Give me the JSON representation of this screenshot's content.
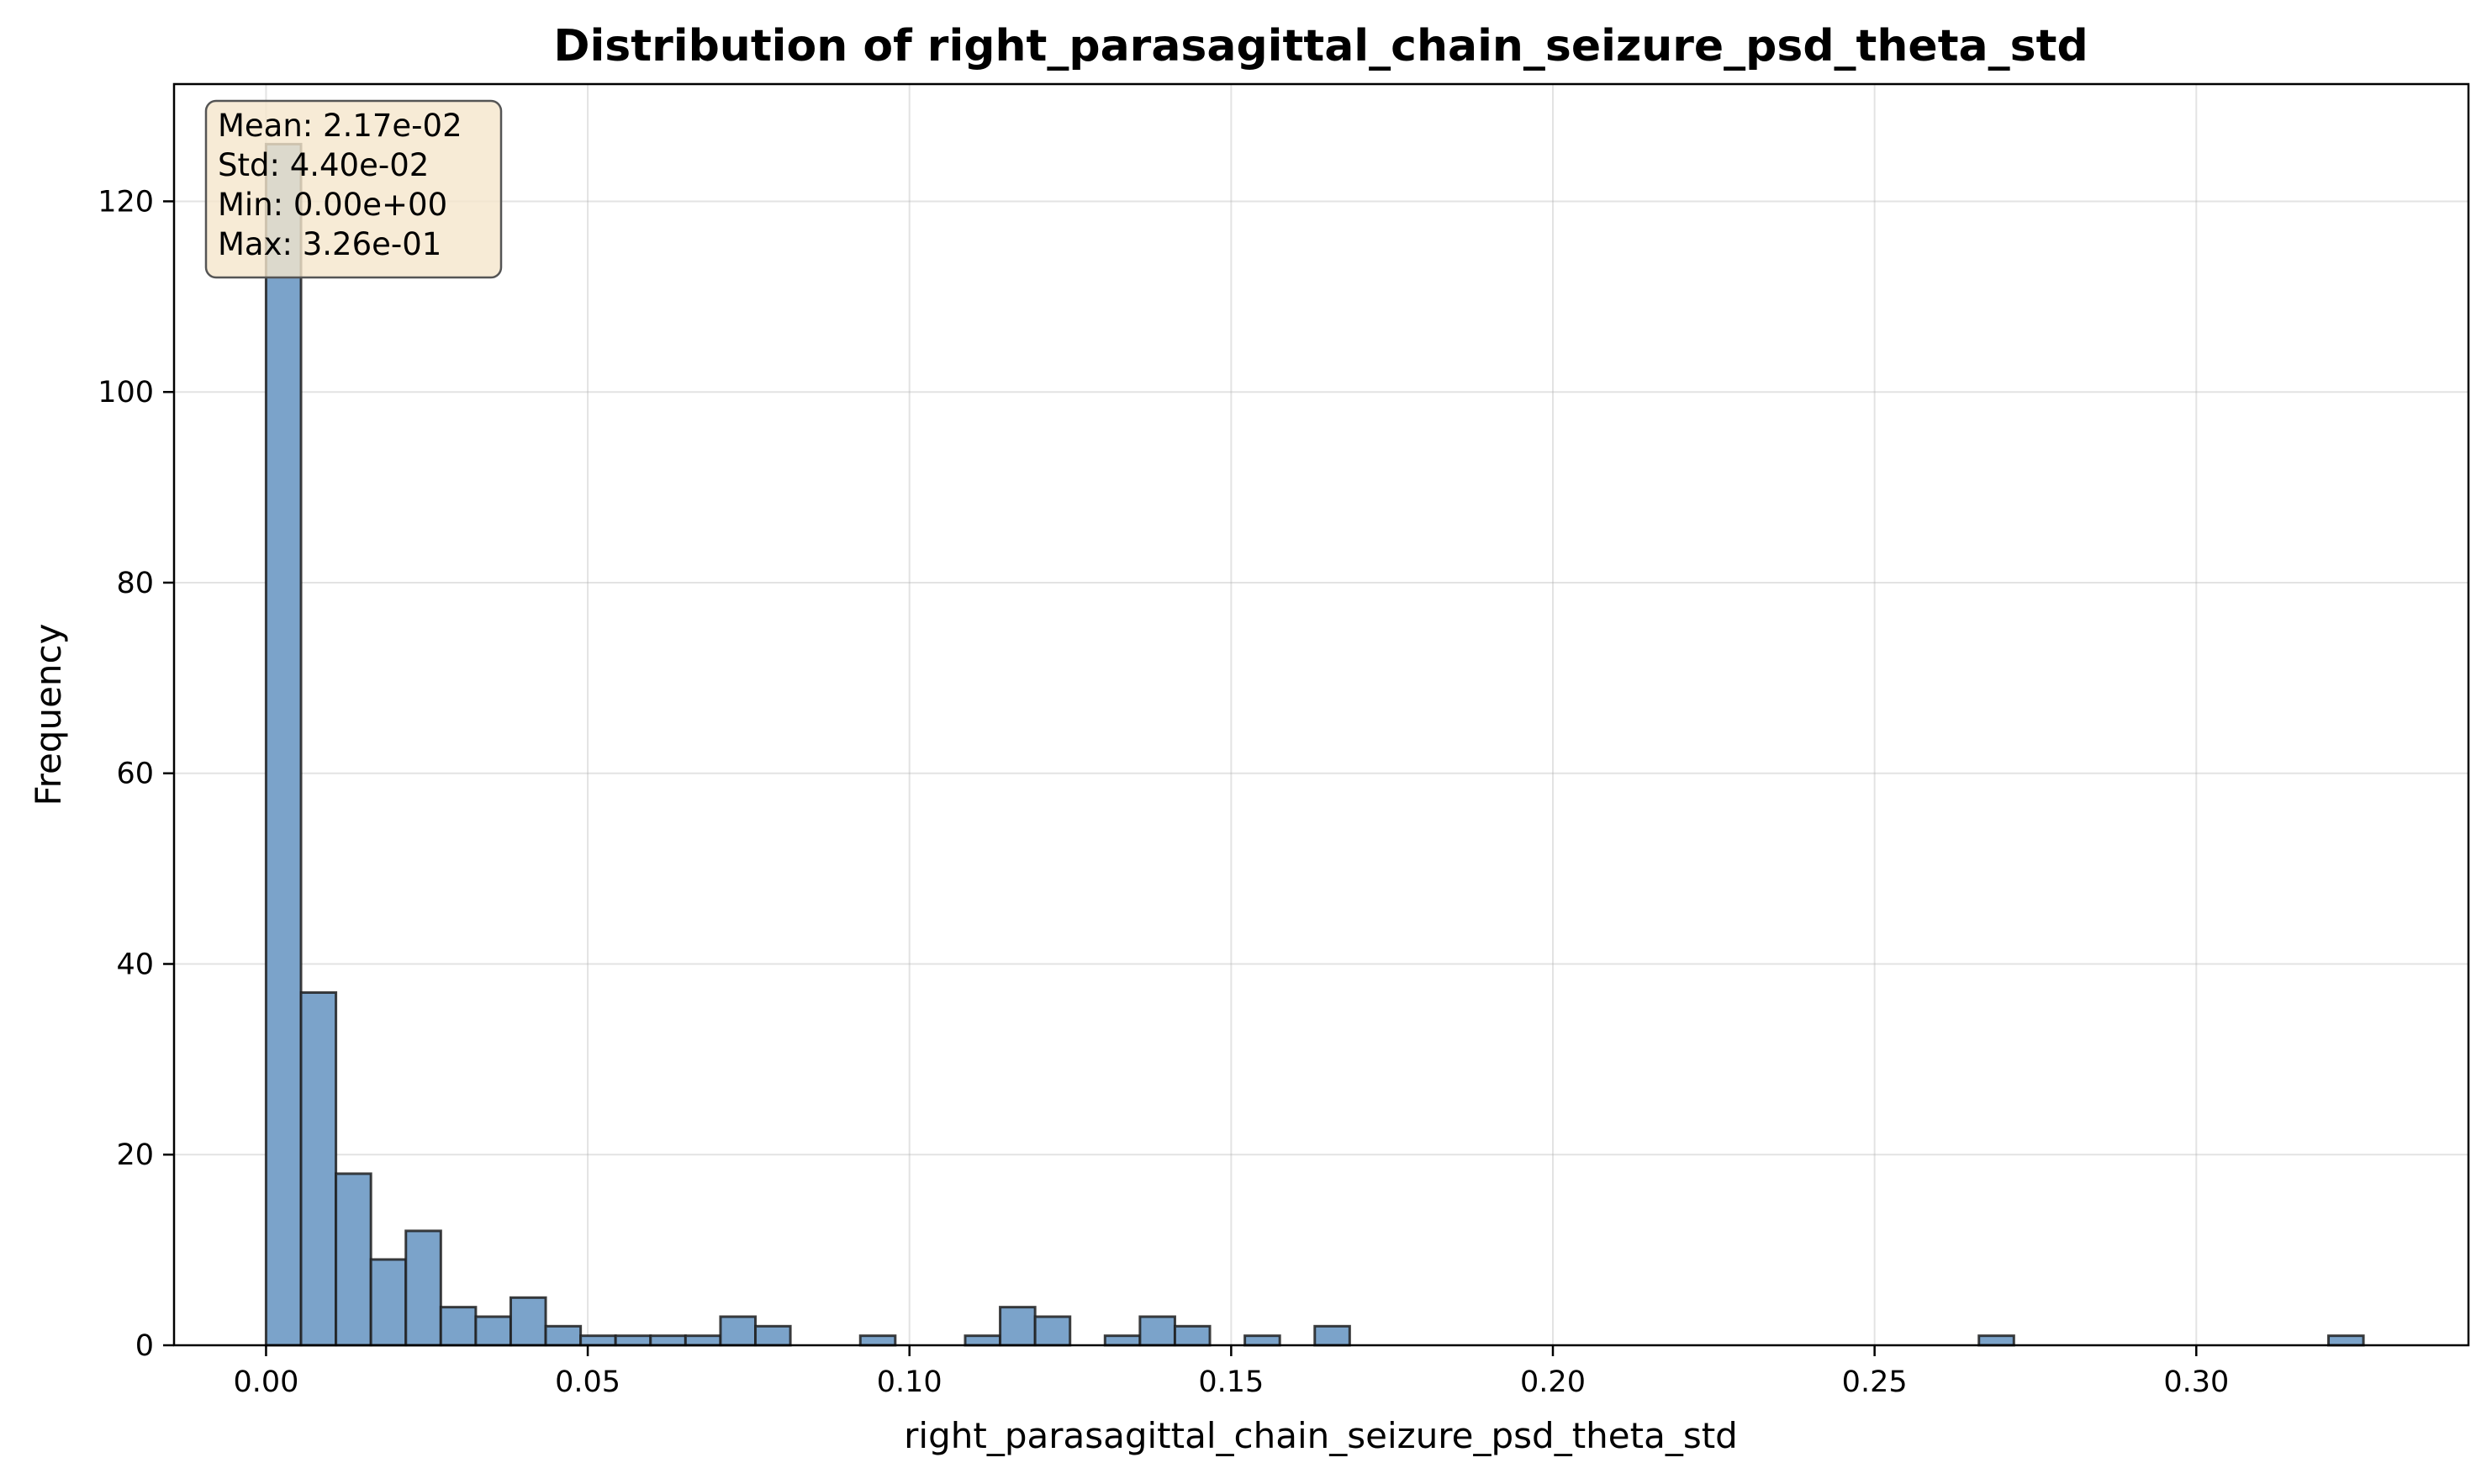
{
  "chart_data": {
    "type": "bar",
    "title": "Distribution of right_parasagittal_chain_seizure_psd_theta_std",
    "xlabel": "right_parasagittal_chain_seizure_psd_theta_std",
    "ylabel": "Frequency",
    "xlim": [
      -0.0143,
      0.3423
    ],
    "ylim": [
      0,
      132.3
    ],
    "xticks": [
      0.0,
      0.05,
      0.1,
      0.15,
      0.2,
      0.25,
      0.3
    ],
    "xtick_labels": [
      "0.00",
      "0.05",
      "0.10",
      "0.15",
      "0.20",
      "0.25",
      "0.30"
    ],
    "yticks": [
      0,
      20,
      40,
      60,
      80,
      100,
      120
    ],
    "ytick_labels": [
      "0",
      "20",
      "40",
      "60",
      "80",
      "100",
      "120"
    ],
    "grid": true,
    "bin_start": 0.0,
    "bin_width": 0.005433,
    "counts": [
      126,
      37,
      18,
      9,
      12,
      4,
      3,
      5,
      2,
      1,
      1,
      1,
      1,
      3,
      2,
      0,
      0,
      1,
      0,
      0,
      1,
      4,
      3,
      0,
      1,
      3,
      2,
      0,
      1,
      0,
      2,
      0,
      0,
      0,
      0,
      0,
      0,
      0,
      0,
      0,
      0,
      0,
      0,
      0,
      0,
      0,
      0,
      0,
      0,
      1,
      0,
      0,
      0,
      0,
      0,
      0,
      0,
      0,
      0,
      1
    ],
    "bar_color": "#7BA3CA",
    "edge_color": "#1f1f1f",
    "stats_box": {
      "lines": [
        "Mean: 2.17e-02",
        "Std: 4.40e-02",
        "Min: 0.00e+00",
        "Max: 3.26e-01"
      ],
      "background": "#F5E6CC"
    }
  }
}
